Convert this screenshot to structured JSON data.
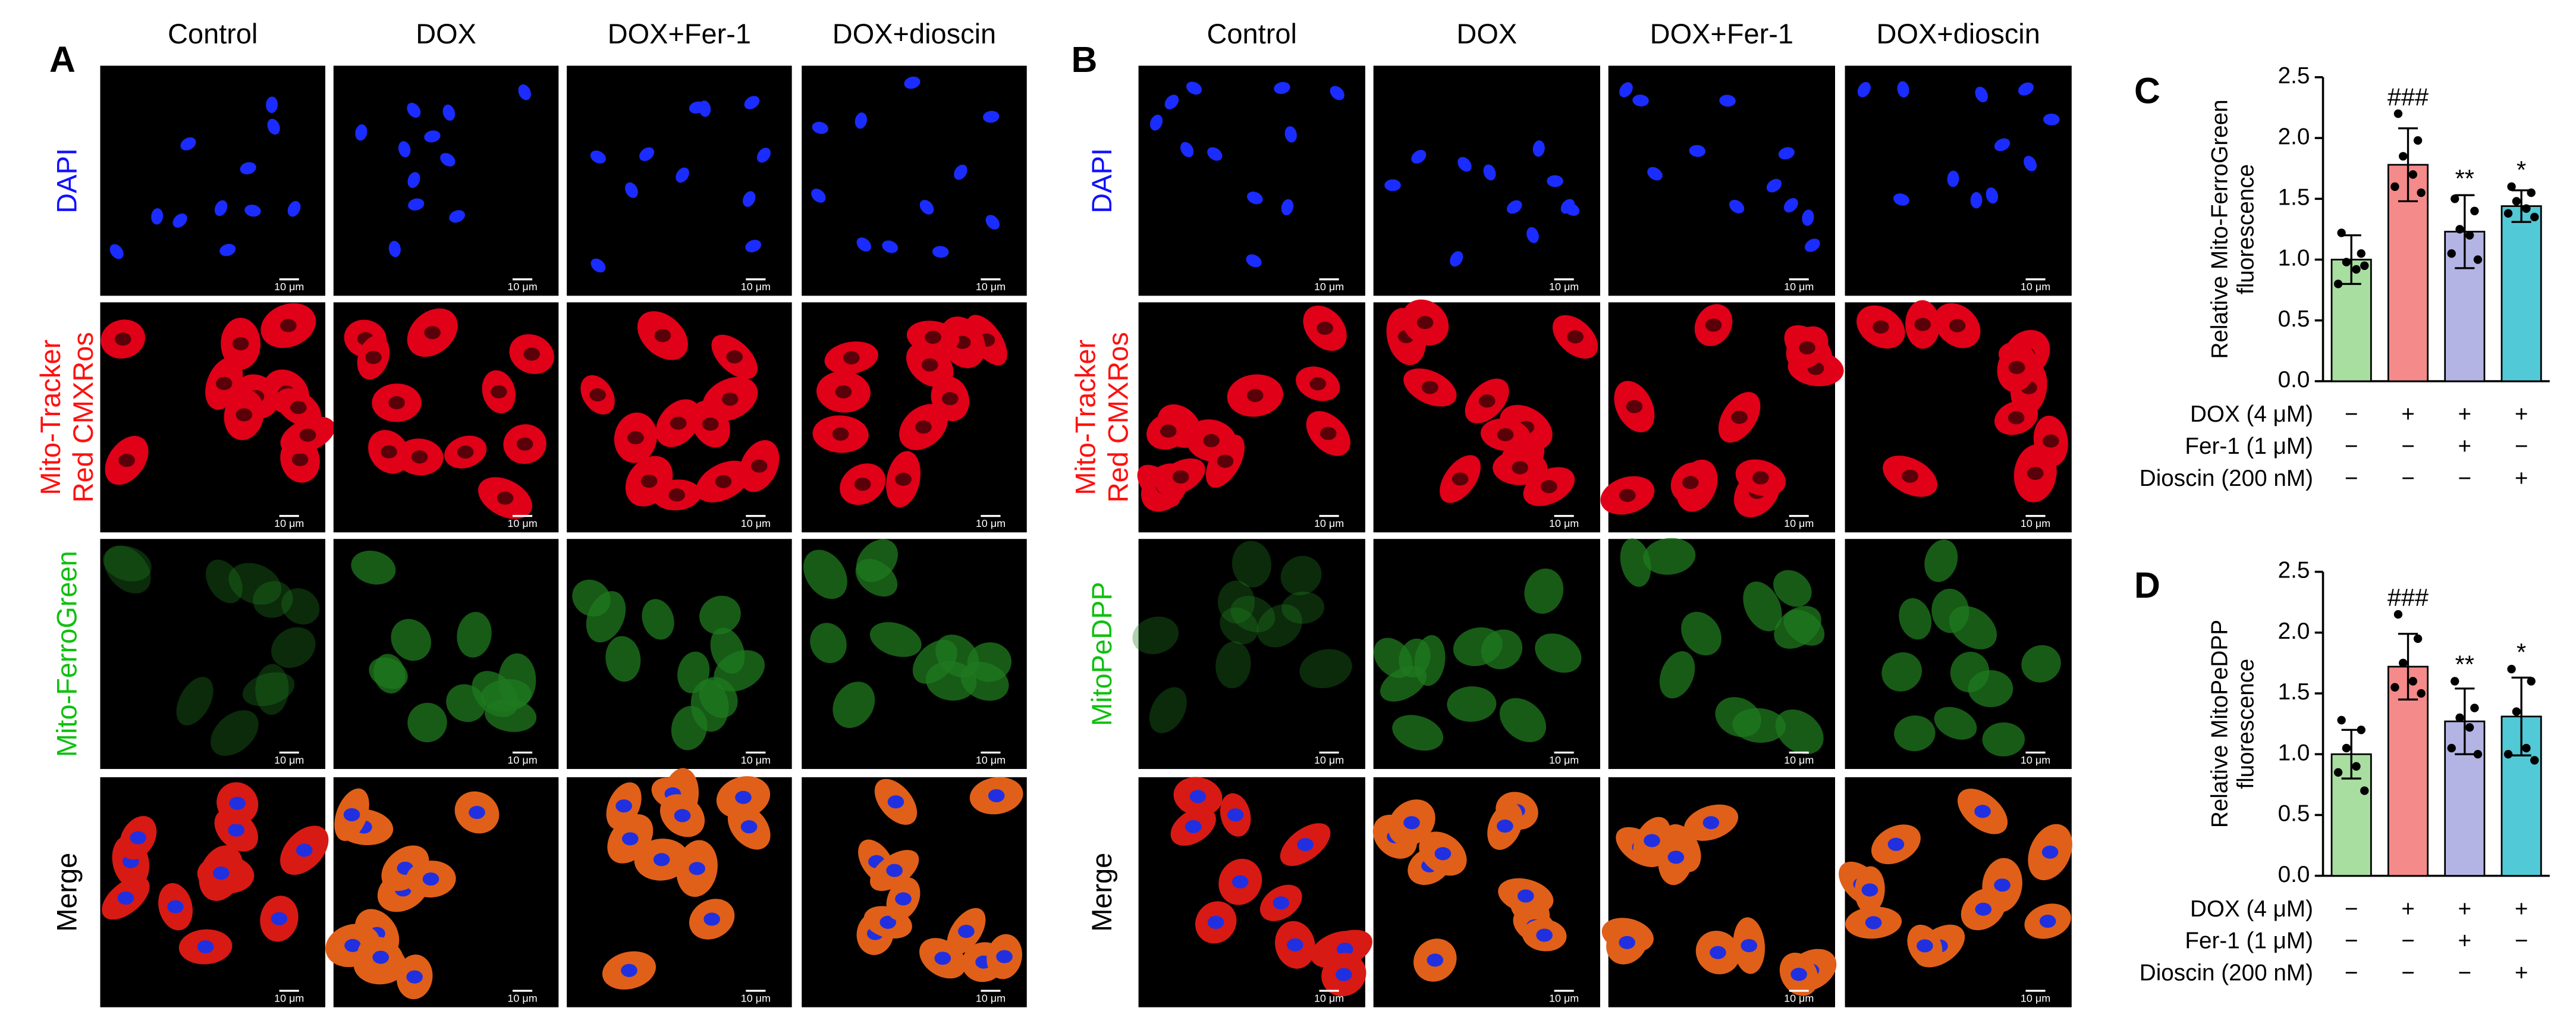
{
  "panels": [
    {
      "label": "A",
      "columns": [
        "Control",
        "DOX",
        "DOX+Fer-1",
        "DOX+dioscin"
      ],
      "scale_bar": "10 μm",
      "rows": [
        {
          "lines": [
            "DAPI"
          ],
          "color": "#1010ff"
        },
        {
          "lines": [
            "Mito-Tracker",
            "Red CMXRos"
          ],
          "color": "#ff1010"
        },
        {
          "lines": [
            "Mito-FerroGreen"
          ],
          "color": "#10c010"
        },
        {
          "lines": [
            "Merge"
          ],
          "color": "#000000"
        }
      ]
    },
    {
      "label": "B",
      "columns": [
        "Control",
        "DOX",
        "DOX+Fer-1",
        "DOX+dioscin"
      ],
      "scale_bar": "10 μm",
      "rows": [
        {
          "lines": [
            "DAPI"
          ],
          "color": "#1010ff"
        },
        {
          "lines": [
            "Mito-Tracker",
            "Red CMXRos"
          ],
          "color": "#ff1010"
        },
        {
          "lines": [
            "MitoPeDPP"
          ],
          "color": "#10c010"
        },
        {
          "lines": [
            "Merge"
          ],
          "color": "#000000"
        }
      ]
    }
  ],
  "chart_data": [
    {
      "type": "bar",
      "label": "C",
      "y_label": [
        "Relative Mito-FerroGreen",
        "fluorescence"
      ],
      "categories": [
        null,
        null,
        null,
        null
      ],
      "values": [
        1.0,
        1.78,
        1.23,
        1.44
      ],
      "errors": [
        0.2,
        0.3,
        0.3,
        0.13
      ],
      "points": [
        [
          1.22,
          1.05,
          0.98,
          0.92,
          0.8,
          0.95
        ],
        [
          2.2,
          1.98,
          1.85,
          1.7,
          1.6,
          1.55
        ],
        [
          1.5,
          1.4,
          1.25,
          1.2,
          1.05,
          1.0
        ],
        [
          1.6,
          1.55,
          1.48,
          1.42,
          1.38,
          1.35
        ]
      ],
      "colors": [
        "#a8dea0",
        "#f48a8a",
        "#b4b4e4",
        "#52c9d6"
      ],
      "significance": [
        null,
        "###",
        "**",
        "*"
      ],
      "ylim": [
        0,
        2.5
      ],
      "yticks": [
        {
          "value": 0,
          "label": "0.0"
        },
        0.5,
        {
          "value": 1,
          "label": "1.0"
        },
        1.5,
        {
          "value": 2,
          "label": "2.0"
        },
        2.5
      ],
      "conditions": [
        {
          "label": "DOX (4 μM)",
          "signs": [
            "−",
            "+",
            "+",
            "+"
          ]
        },
        {
          "label": "Fer-1 (1 μM)",
          "signs": [
            "−",
            "−",
            "+",
            "−"
          ]
        },
        {
          "label": "Dioscin (200 nM)",
          "signs": [
            "−",
            "−",
            "−",
            "+"
          ]
        }
      ]
    },
    {
      "type": "bar",
      "label": "D",
      "y_label": [
        "Relative MitoPeDPP",
        "fluorescence"
      ],
      "categories": [
        null,
        null,
        null,
        null
      ],
      "values": [
        1.0,
        1.72,
        1.27,
        1.31
      ],
      "errors": [
        0.2,
        0.27,
        0.27,
        0.32
      ],
      "points": [
        [
          1.28,
          1.2,
          1.05,
          0.9,
          0.85,
          0.7
        ],
        [
          2.15,
          1.95,
          1.75,
          1.6,
          1.55,
          1.5
        ],
        [
          1.6,
          1.38,
          1.3,
          1.22,
          1.05,
          1.0
        ],
        [
          1.7,
          1.6,
          1.35,
          1.05,
          1.0,
          0.95
        ]
      ],
      "colors": [
        "#a8dea0",
        "#f48a8a",
        "#b4b4e4",
        "#52c9d6"
      ],
      "significance": [
        null,
        "###",
        "**",
        "*"
      ],
      "ylim": [
        0,
        2.5
      ],
      "yticks": [
        {
          "value": 0,
          "label": "0.0"
        },
        0.5,
        {
          "value": 1,
          "label": "1.0"
        },
        1.5,
        {
          "value": 2,
          "label": "2.0"
        },
        2.5
      ],
      "conditions": [
        {
          "label": "DOX (4 μM)",
          "signs": [
            "−",
            "+",
            "+",
            "+"
          ]
        },
        {
          "label": "Fer-1 (1 μM)",
          "signs": [
            "−",
            "−",
            "+",
            "−"
          ]
        },
        {
          "label": "Dioscin (200 nM)",
          "signs": [
            "−",
            "−",
            "−",
            "+"
          ]
        }
      ]
    }
  ]
}
